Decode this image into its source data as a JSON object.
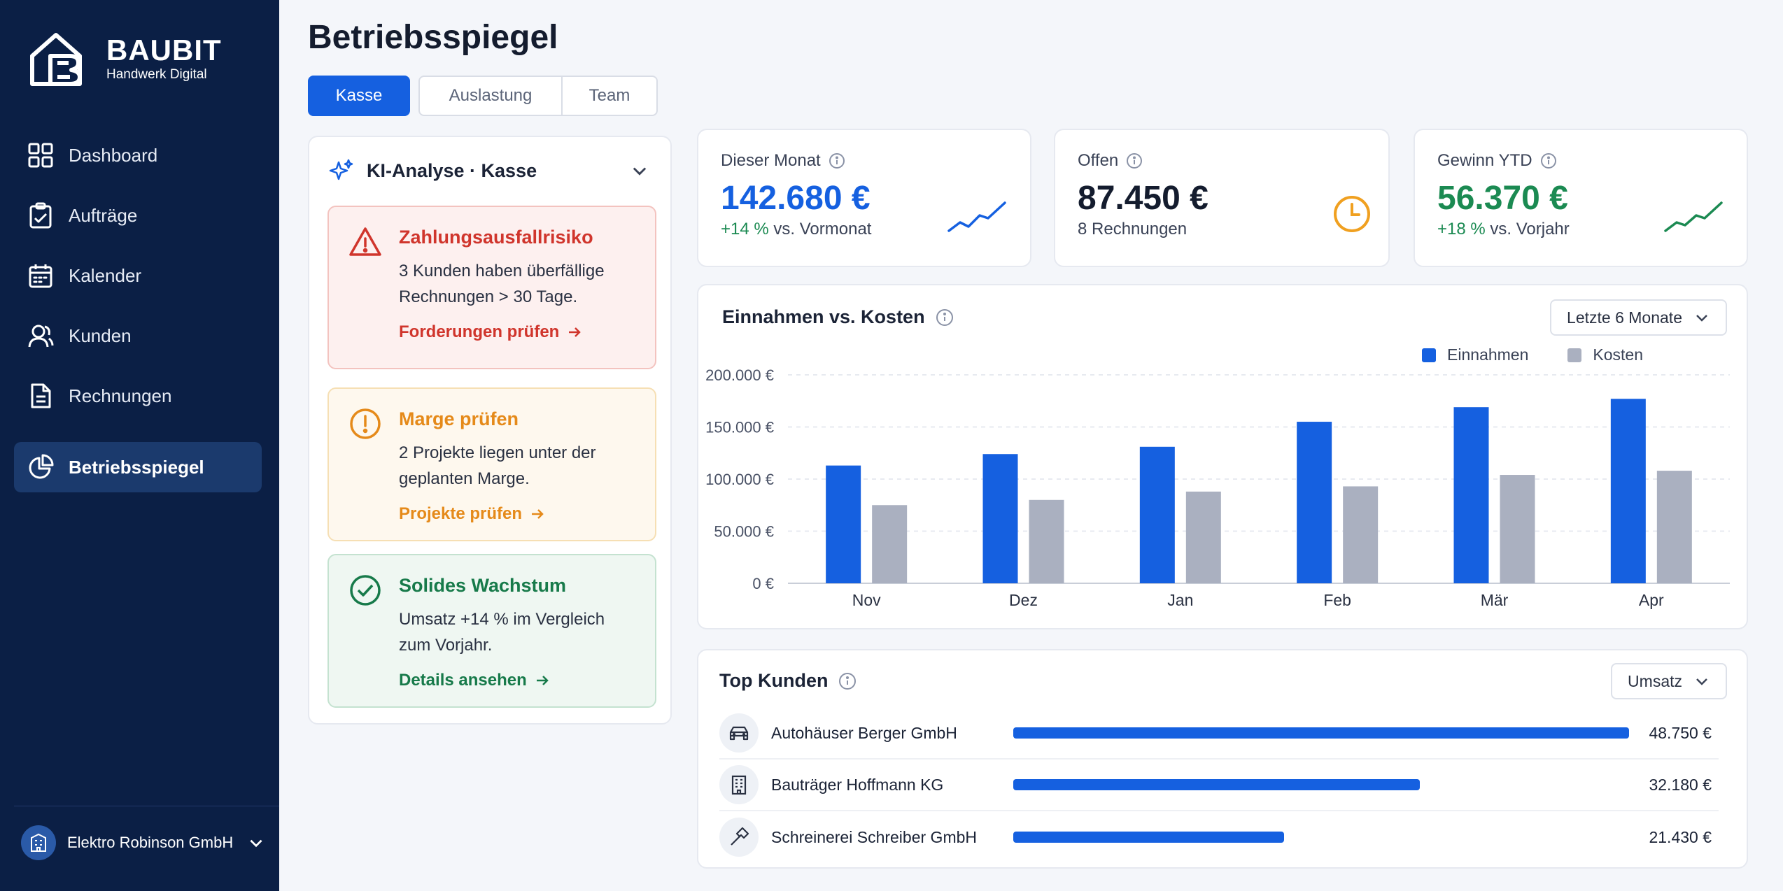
{
  "app": {
    "name": "BAUBIT",
    "tagline": "Handwerk Digital"
  },
  "sidebar": {
    "items": [
      {
        "label": "Dashboard",
        "icon": "grid-icon"
      },
      {
        "label": "Aufträge",
        "icon": "clipboard-icon"
      },
      {
        "label": "Kalender",
        "icon": "calendar-icon"
      },
      {
        "label": "Kunden",
        "icon": "users-icon"
      },
      {
        "label": "Rechnungen",
        "icon": "document-icon"
      },
      {
        "label": "Betriebsspiegel",
        "icon": "pie-chart-icon",
        "active": true
      }
    ],
    "company": "Elektro Robinson GmbH"
  },
  "page": {
    "title": "Betriebsspiegel",
    "tabs": [
      "Kasse",
      "Auslastung",
      "Team"
    ],
    "active_tab": "Kasse"
  },
  "ai_panel": {
    "title": "KI-Analyse · Kasse",
    "alerts": [
      {
        "title": "Zahlungsausfallrisiko",
        "text_lines": [
          "3 Kunden haben überfällige",
          "Rechnungen > 30 Tage."
        ],
        "link": "Forderungen prüfen",
        "level": "danger"
      },
      {
        "title": "Marge prüfen",
        "text_lines": [
          "2 Projekte liegen unter der",
          "geplanten Marge."
        ],
        "link": "Projekte prüfen",
        "level": "warning"
      },
      {
        "title": "Solides Wachstum",
        "text_lines": [
          "Umsatz +14 % im Vergleich",
          "zum Vorjahr."
        ],
        "link": "Details ansehen",
        "level": "success"
      }
    ]
  },
  "kpis": [
    {
      "label": "Dieser Monat",
      "value": "142.680 €",
      "delta": "+14 %",
      "sub": "vs. Vormonat",
      "icon": "trend-up-icon",
      "color": "#1560e0"
    },
    {
      "label": "Offen",
      "value": "87.450 €",
      "delta": "",
      "sub": "8 Rechnungen",
      "icon": "clock-icon",
      "color": "#141c2e"
    },
    {
      "label": "Gewinn YTD",
      "value": "56.370 €",
      "delta": "+18 %",
      "sub": "vs. Vorjahr",
      "icon": "trend-up-icon",
      "color": "#1b8a52"
    }
  ],
  "chart_card": {
    "title": "Einnahmen vs. Kosten",
    "range": "Letzte 6 Monate"
  },
  "chart_data": {
    "type": "bar",
    "categories": [
      "Nov",
      "Dez",
      "Jan",
      "Feb",
      "Mär",
      "Apr"
    ],
    "series": [
      {
        "name": "Einnahmen",
        "color": "#1560e0",
        "values": [
          113000,
          124000,
          131000,
          155000,
          169000,
          177000
        ]
      },
      {
        "name": "Kosten",
        "color": "#aab0c0",
        "values": [
          75000,
          80000,
          88000,
          93000,
          104000,
          108000
        ]
      }
    ],
    "yticks": [
      "200.000 €",
      "150.000 €",
      "100.000 €",
      "50.000 €",
      "0 €"
    ],
    "ylim": [
      0,
      200000
    ],
    "grid": true,
    "legend": "top-right"
  },
  "top_customers": {
    "title": "Top Kunden",
    "sort": "Umsatz",
    "rows": [
      {
        "name": "Autohäuser Berger GmbH",
        "value": "48.750 €",
        "amount": 48750,
        "icon": "car-icon"
      },
      {
        "name": "Bauträger Hoffmann KG",
        "value": "32.180 €",
        "amount": 32180,
        "icon": "building-icon"
      },
      {
        "name": "Schreinerei Schreiber GmbH",
        "value": "21.430 €",
        "amount": 21430,
        "icon": "hammer-icon"
      }
    ]
  }
}
